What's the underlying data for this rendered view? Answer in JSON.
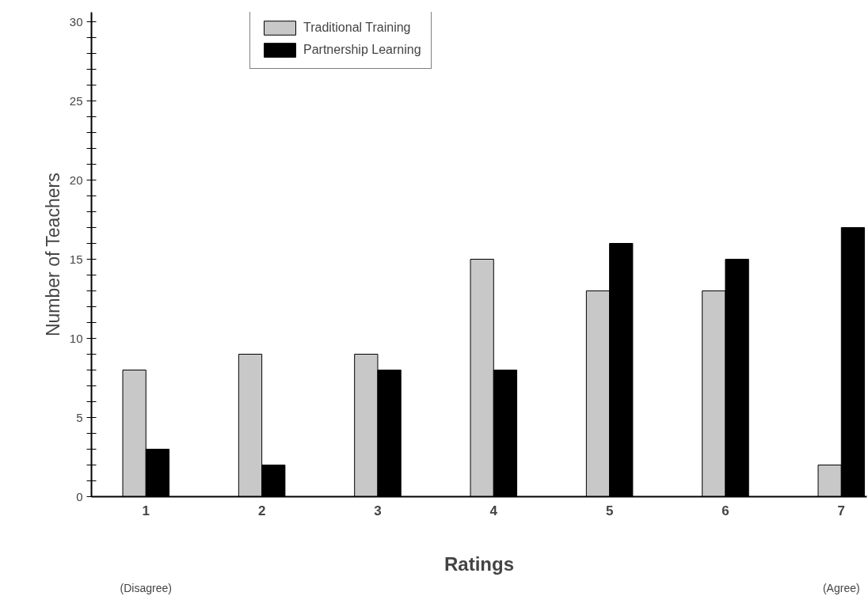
{
  "chart_data": {
    "type": "bar",
    "xlabel": "Ratings",
    "ylabel": "Number of Teachers",
    "categories": [
      "1",
      "2",
      "3",
      "4",
      "5",
      "6",
      "7"
    ],
    "series": [
      {
        "name": "Traditional Training",
        "color": "#c8c8c8",
        "values": [
          8,
          9,
          9,
          15,
          13,
          13,
          2
        ]
      },
      {
        "name": "Partnership Learning",
        "color": "#000000",
        "values": [
          3,
          2,
          8,
          8,
          16,
          15,
          17
        ]
      }
    ],
    "annotations": [
      "(Disagree)",
      "(Agree)"
    ],
    "ylim": [
      0,
      30.6
    ],
    "yticks": [
      0,
      {
        "value": 1,
        "label": null
      },
      {
        "value": 2,
        "label": null
      },
      {
        "value": 3,
        "label": null
      },
      {
        "value": 4,
        "label": null
      },
      5,
      {
        "value": 6,
        "label": null
      },
      {
        "value": 7,
        "label": null
      },
      {
        "value": 8,
        "label": null
      },
      {
        "value": 9,
        "label": null
      },
      10,
      {
        "value": 11,
        "label": null
      },
      {
        "value": 12,
        "label": null
      },
      {
        "value": 13,
        "label": null
      },
      {
        "value": 14,
        "label": null
      },
      15,
      {
        "value": 16,
        "label": null
      },
      {
        "value": 17,
        "label": null
      },
      {
        "value": 18,
        "label": null
      },
      {
        "value": 19,
        "label": null
      },
      20,
      {
        "value": 21,
        "label": null
      },
      {
        "value": 22,
        "label": null
      },
      {
        "value": 23,
        "label": null
      },
      {
        "value": 24,
        "label": null
      },
      25,
      {
        "value": 26,
        "label": null
      },
      {
        "value": 27,
        "label": null
      },
      {
        "value": 28,
        "label": null
      },
      {
        "value": 29,
        "label": null
      },
      30
    ],
    "grid": false,
    "legend": "top"
  }
}
